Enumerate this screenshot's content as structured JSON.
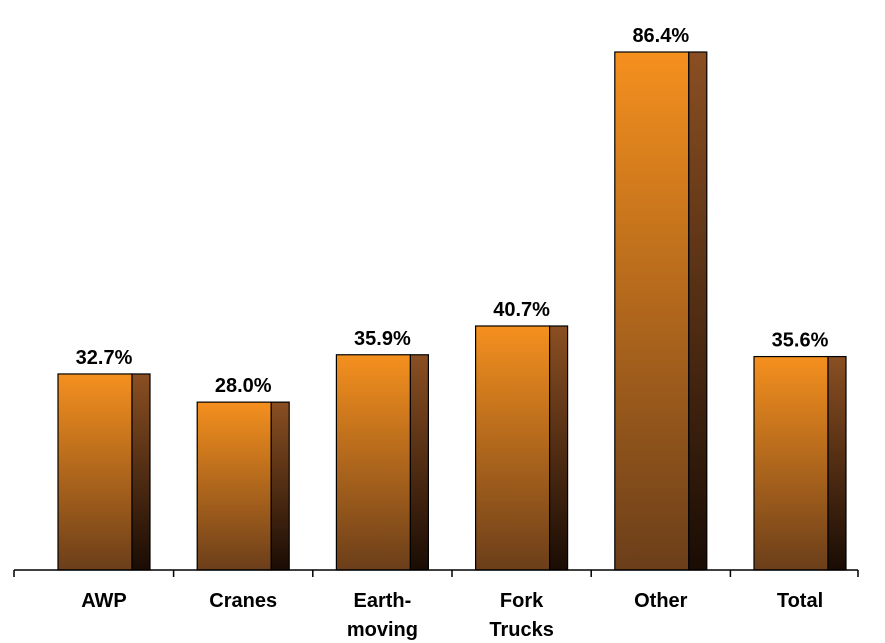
{
  "chart_data": {
    "type": "bar",
    "categories": [
      [
        "AWP"
      ],
      [
        "Cranes"
      ],
      [
        "Earth-",
        "moving"
      ],
      [
        "Fork",
        "Trucks"
      ],
      [
        "Other"
      ],
      [
        "Total"
      ]
    ],
    "values": [
      32.7,
      28.0,
      35.9,
      40.7,
      86.4,
      35.6
    ],
    "data_labels": [
      "32.7%",
      "28.0%",
      "35.9%",
      "40.7%",
      "86.4%",
      "35.6%"
    ],
    "title": "",
    "xlabel": "",
    "ylabel": "",
    "ylim": [
      0,
      86.4
    ],
    "grid": false,
    "legend": "none",
    "colors": {
      "front_top": "#f5901e",
      "front_bottom": "#6b3e1a",
      "side_top": "#8a4f22",
      "side_bottom": "#1a0c04",
      "outline": "#000000"
    }
  }
}
